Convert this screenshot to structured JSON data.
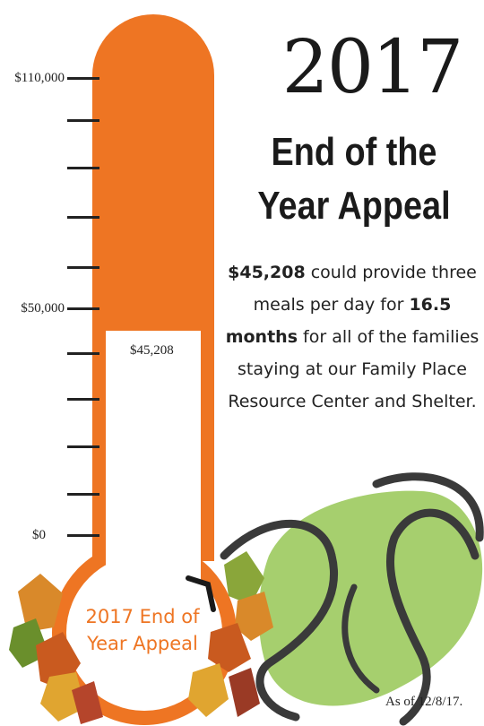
{
  "heading": {
    "year": "2017",
    "title_line1": "End of the",
    "title_line2": "Year Appeal"
  },
  "body": {
    "amount": "$45,208",
    "text1": " could provide three meals per day for ",
    "months": "16.5 months",
    "text2": " for all of the families staying at our Family Place Resource Center and Shelter."
  },
  "thermometer": {
    "labels": {
      "top": "$110,000",
      "mid": "$50,000",
      "bottom": "$0"
    },
    "current_label": "$45,208",
    "bulb_line1": "2017 End of",
    "bulb_line2": "Year Appeal",
    "color": "#ee7523"
  },
  "footer": {
    "as_of": "As of 12/8/17."
  },
  "colors": {
    "accent": "#ee7523",
    "leaf_green": "#a6cf6e",
    "swirl": "#3a3a3a"
  }
}
